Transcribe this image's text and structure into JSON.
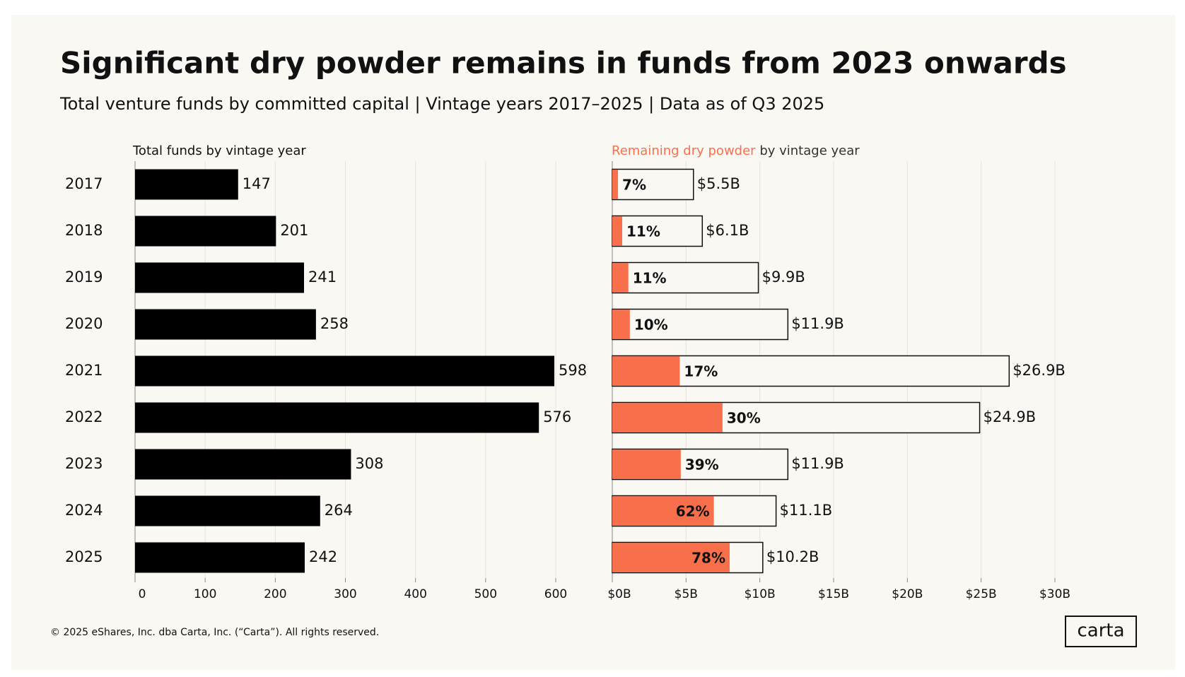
{
  "header": {
    "title": "Significant dry powder remains in funds from 2023 onwards",
    "subtitle": "Total venture funds by committed capital | Vintage years 2017–2025 | Data as of Q3 2025"
  },
  "chart_data": [
    {
      "type": "hbar",
      "axis_title": "Total funds by vintage year",
      "categories": [
        "2017",
        "2018",
        "2019",
        "2020",
        "2021",
        "2022",
        "2023",
        "2024",
        "2025"
      ],
      "values": [
        147,
        201,
        241,
        258,
        598,
        576,
        308,
        264,
        242
      ],
      "color": "#000000",
      "xlim": [
        0,
        600
      ],
      "xticks": [
        0,
        100,
        200,
        300,
        400,
        500,
        600
      ],
      "grid": true
    },
    {
      "type": "share-hbar",
      "axis_title": {
        "highlight": "Remaining dry powder",
        "rest": "by vintage year"
      },
      "values": [
        5.5,
        6.1,
        9.9,
        11.9,
        26.9,
        24.9,
        11.9,
        11.1,
        10.2
      ],
      "value_labels": [
        "$5.5B",
        "$6.1B",
        "$9.9B",
        "$11.9B",
        "$26.9B",
        "$24.9B",
        "$11.9B",
        "$11.1B",
        "$10.2B"
      ],
      "share_values": [
        7,
        11,
        11,
        10,
        17,
        30,
        39,
        62,
        78
      ],
      "share_labels": [
        "7%",
        "11%",
        "11%",
        "10%",
        "17%",
        "30%",
        "39%",
        "62%",
        "78%"
      ],
      "color": "#faf8f3",
      "share_color": "#f7704b",
      "xlim": [
        0,
        30
      ],
      "xticks": [
        {
          "value": 0,
          "label": "$0B"
        },
        {
          "value": 5,
          "label": "$5B"
        },
        {
          "value": 10,
          "label": "$10B"
        },
        {
          "value": 15,
          "label": "$15B"
        },
        {
          "value": 20,
          "label": "$20B"
        },
        {
          "value": 25,
          "label": "$25B"
        },
        {
          "value": 30,
          "label": "$30B"
        }
      ],
      "grid": true
    }
  ],
  "footer": {
    "copyright": "© 2025 eShares, Inc. dba Carta, Inc. (“Carta”). All rights reserved.",
    "logo": "carta"
  }
}
